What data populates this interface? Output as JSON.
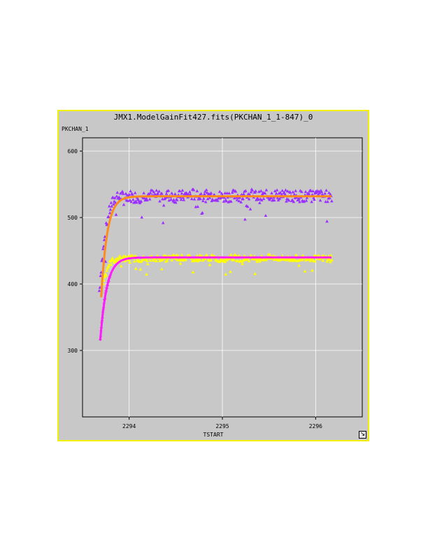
{
  "chart_data": {
    "type": "scatter",
    "title": "JMX1.ModelGainFit427.fits(PKCHAN_1_1-847)_0",
    "xlabel": "TSTART",
    "ylabel": "PKCHAN_1",
    "xlim": [
      2293.5,
      2296.5
    ],
    "ylim": [
      200,
      620
    ],
    "x_ticks": [
      "2294",
      "2295",
      "2296"
    ],
    "y_ticks": [
      "300",
      "400",
      "500",
      "600"
    ],
    "grid": true,
    "colors": {
      "upper_points": "#9b30ff",
      "upper_fit": "#ff8c1a",
      "lower_points": "#ffff00",
      "lower_fit": "#ff1aff",
      "lower_early": "#cc22cc"
    },
    "series": [
      {
        "marker": "triangle",
        "color": "#9b30ff",
        "x": [
          2293.68,
          2293.7,
          2293.72,
          2293.74,
          2293.76,
          2293.78,
          2293.8,
          2293.82,
          2293.84,
          2293.86,
          2293.88,
          2293.9,
          2293.95,
          2294.0,
          2294.1,
          2294.2,
          2294.3,
          2294.4,
          2294.5,
          2294.6,
          2294.7,
          2294.8,
          2294.9,
          2295.0,
          2295.1,
          2295.2,
          2295.3,
          2295.4,
          2295.5,
          2295.6,
          2295.7,
          2295.8,
          2295.9,
          2296.0,
          2296.1,
          2296.18
        ],
        "y": [
          390,
          425,
          450,
          470,
          490,
          505,
          515,
          522,
          526,
          528,
          530,
          532,
          531,
          533,
          530,
          535,
          532,
          534,
          531,
          533,
          535,
          532,
          534,
          531,
          533,
          532,
          535,
          531,
          533,
          534,
          532,
          533,
          531,
          534,
          532,
          533
        ],
        "spread": 18
      },
      {
        "marker": "triangle",
        "color": "#ffff00",
        "x": [
          2293.72,
          2293.74,
          2293.76,
          2293.78,
          2293.8,
          2293.82,
          2293.85,
          2293.9,
          2293.95,
          2294.0,
          2294.1,
          2294.2,
          2294.3,
          2294.4,
          2294.5,
          2294.6,
          2294.7,
          2294.8,
          2294.9,
          2295.0,
          2295.1,
          2295.2,
          2295.3,
          2295.4,
          2295.5,
          2295.6,
          2295.7,
          2295.8,
          2295.9,
          2296.0,
          2296.1,
          2296.18
        ],
        "y": [
          400,
          415,
          422,
          428,
          432,
          435,
          437,
          438,
          438,
          439,
          438,
          437,
          439,
          438,
          440,
          439,
          438,
          440,
          439,
          437,
          440,
          438,
          439,
          438,
          440,
          439,
          438,
          439,
          440,
          438,
          439,
          440
        ],
        "spread": 9
      }
    ],
    "fits": [
      {
        "name": "",
        "color": "#ff8c1a",
        "asymptote": 532,
        "start": 380,
        "tau": 0.065,
        "x0": 2293.7
      },
      {
        "name": "",
        "color": "#ff1aff",
        "asymptote": 440,
        "start": 315,
        "tau": 0.07,
        "x0": 2293.69
      }
    ]
  }
}
